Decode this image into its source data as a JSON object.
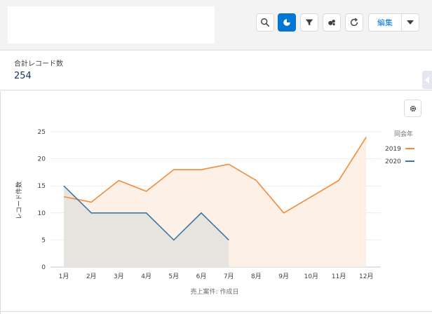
{
  "header": {
    "title": "",
    "toolbar": {
      "search_icon": "search-icon",
      "chart_icon": "chart-icon",
      "filter_icon": "filter-icon",
      "bubbles_icon": "bubbles-icon",
      "refresh_icon": "refresh-icon",
      "edit_label": "編集",
      "dropdown_icon": "chevron-down-icon"
    },
    "colors": {
      "accent": "#0176d3"
    }
  },
  "summary": {
    "label": "合計レコード数",
    "value": "254"
  },
  "chart_data": {
    "type": "line",
    "xlabel": "売上案件: 作成日",
    "ylabel": "レコード件数",
    "categories": [
      "1月",
      "2月",
      "3月",
      "4月",
      "5月",
      "6月",
      "7月",
      "8月",
      "9月",
      "10月",
      "11月",
      "12月"
    ],
    "yticks": [
      0,
      5,
      10,
      15,
      20,
      25
    ],
    "ylim": [
      0,
      25
    ],
    "legend_title": "同会年",
    "legend_position": "right",
    "series": [
      {
        "name": "2019",
        "color": "#f38b3c",
        "fill": "#fdeee3",
        "values": [
          13,
          12,
          16,
          14,
          18,
          18,
          19,
          16,
          10,
          13,
          16,
          24
        ]
      },
      {
        "name": "2020",
        "color": "#3a77a9",
        "fill": "#e3e1dd",
        "values": [
          15,
          10,
          10,
          10,
          5,
          10,
          5,
          null,
          null,
          null,
          null,
          null
        ]
      }
    ]
  }
}
